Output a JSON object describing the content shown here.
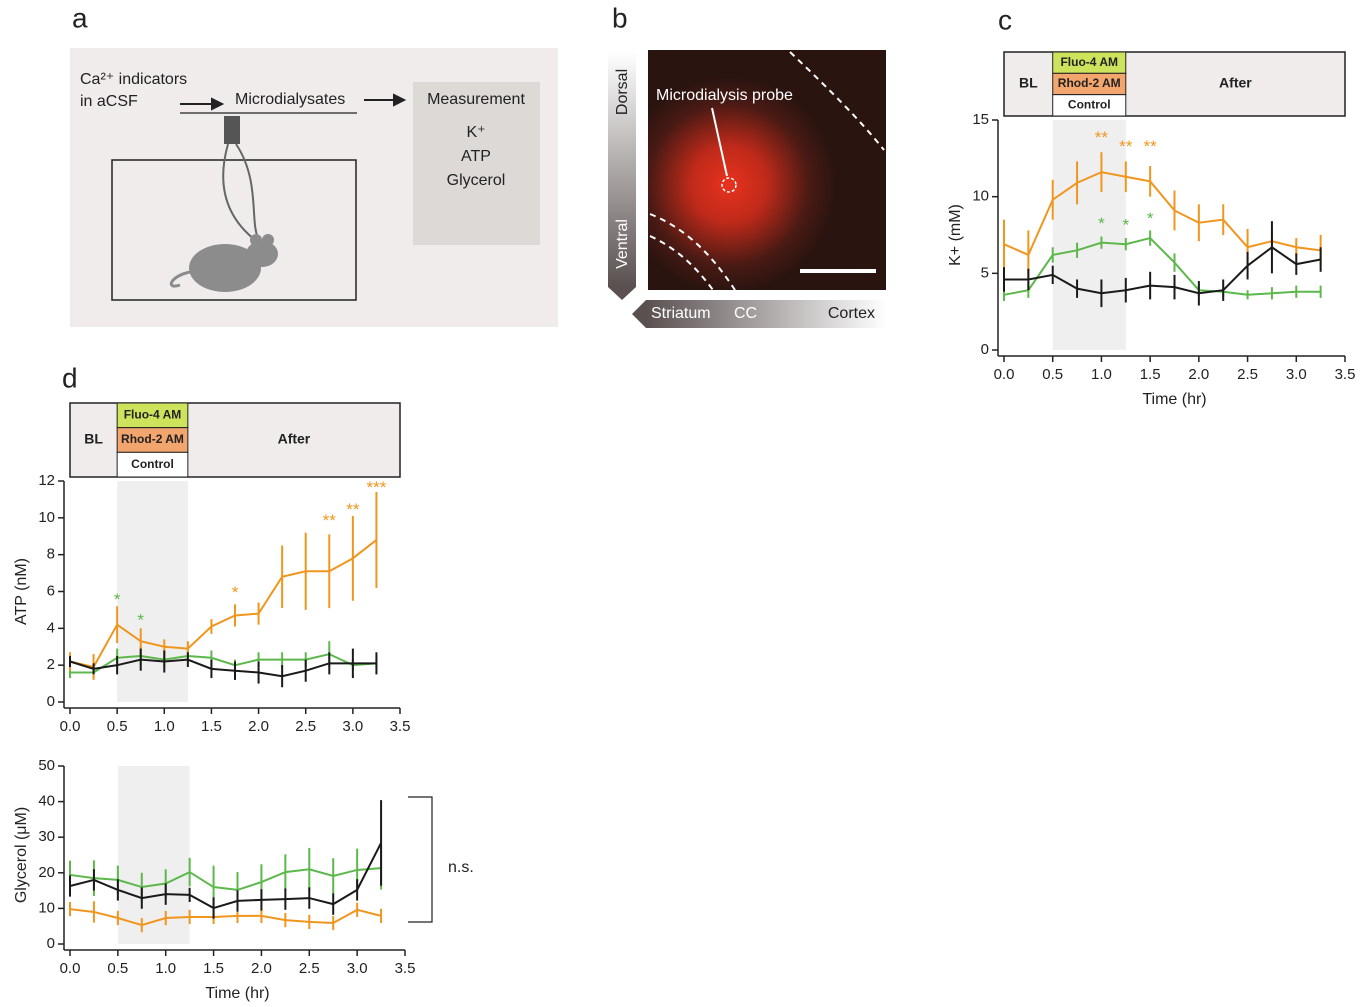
{
  "panel_labels": [
    "a",
    "b",
    "c",
    "d"
  ],
  "schematic": {
    "input_line1": "Ca²⁺ indicators",
    "input_line2": "in aCSF",
    "flow": "Microdialysates",
    "box_title": "Measurement",
    "items": [
      "K⁺",
      "ATP",
      "Glycerol"
    ]
  },
  "image": {
    "vertical_top": "Dorsal",
    "vertical_bottom": "Ventral",
    "probe_label": "Microdialysis probe",
    "horizontal_labels": [
      "Striatum",
      "CC",
      "Cortex"
    ]
  },
  "chart_data": [
    {
      "type": "line",
      "ylabel": "K+ (mM)",
      "xlabel": "Time (hr)",
      "phases": {
        "before": "BL",
        "after": "After"
      },
      "shaded_x": [
        0.5,
        1.25
      ],
      "xlim": [
        0,
        3.5
      ],
      "xticks": [
        {
          "value": 0,
          "label": "0.0"
        },
        {
          "value": 0.5,
          "label": "0.5"
        },
        {
          "value": 1,
          "label": "1.0"
        },
        {
          "value": 1.5,
          "label": "1.5"
        },
        {
          "value": 2,
          "label": "2.0"
        },
        {
          "value": 2.5,
          "label": "2.5"
        },
        {
          "value": 3,
          "label": "3.0"
        },
        {
          "value": 3.5,
          "label": "3.5"
        }
      ],
      "ylim": [
        0,
        15
      ],
      "yticks": [
        0,
        5,
        10,
        15
      ],
      "x": [
        0,
        0.25,
        0.5,
        0.75,
        1,
        1.25,
        1.5,
        1.75,
        2,
        2.25,
        2.5,
        2.75,
        3,
        3.25
      ],
      "series": [
        {
          "name": "Fluo-4 AM",
          "color": "#5cb84a",
          "legend_fill": "#cde35c",
          "values": [
            3.6,
            3.9,
            6.2,
            6.5,
            7.0,
            6.9,
            7.3,
            5.7,
            3.9,
            3.8,
            3.6,
            3.7,
            3.8,
            3.8
          ],
          "errors": [
            0.4,
            0.5,
            0.5,
            0.5,
            0.4,
            0.4,
            0.5,
            0.6,
            0.4,
            0.3,
            0.3,
            0.4,
            0.4,
            0.4
          ]
        },
        {
          "name": "Rhod-2 AM",
          "color": "#f0961e",
          "legend_fill": "#f2a56c",
          "values": [
            6.9,
            6.2,
            9.8,
            10.9,
            11.6,
            11.3,
            11.0,
            9.1,
            8.3,
            8.5,
            6.7,
            7.1,
            6.7,
            6.5
          ],
          "errors": [
            1.6,
            1.6,
            1.3,
            1.4,
            1.3,
            1.0,
            1.0,
            1.3,
            1.2,
            1.0,
            1.2,
            0.4,
            0.6,
            1.0
          ]
        },
        {
          "name": "Control",
          "color": "#1a1a1a",
          "legend_fill": "#ffffff",
          "values": [
            4.6,
            4.6,
            4.9,
            4.0,
            3.7,
            3.9,
            4.2,
            4.1,
            3.7,
            3.9,
            5.5,
            6.7,
            5.6,
            5.9
          ],
          "errors": [
            0.8,
            0.7,
            0.6,
            0.6,
            0.9,
            0.8,
            0.9,
            0.8,
            0.8,
            0.7,
            0.9,
            1.7,
            0.7,
            0.8
          ]
        }
      ],
      "annotations": [
        {
          "text": "**",
          "x": 1,
          "y": 13.8,
          "color": "#f0961e"
        },
        {
          "text": "**",
          "x": 1.25,
          "y": 13.2,
          "color": "#f0961e"
        },
        {
          "text": "**",
          "x": 1.5,
          "y": 13.2,
          "color": "#f0961e"
        },
        {
          "text": "*",
          "x": 1,
          "y": 8.2,
          "color": "#5cb84a"
        },
        {
          "text": "*",
          "x": 1.25,
          "y": 8.1,
          "color": "#5cb84a"
        },
        {
          "text": "*",
          "x": 1.5,
          "y": 8.5,
          "color": "#5cb84a"
        }
      ]
    },
    {
      "type": "line",
      "ylabel": "ATP (nM)",
      "phases": {
        "before": "BL",
        "after": "After"
      },
      "shaded_x": [
        0.5,
        1.25
      ],
      "xlim": [
        0,
        3.5
      ],
      "xticks": [
        {
          "value": 0,
          "label": "0.0"
        },
        {
          "value": 0.5,
          "label": "0.5"
        },
        {
          "value": 1,
          "label": "1.0"
        },
        {
          "value": 1.5,
          "label": "1.5"
        },
        {
          "value": 2,
          "label": "2.0"
        },
        {
          "value": 2.5,
          "label": "2.5"
        },
        {
          "value": 3,
          "label": "3.0"
        },
        {
          "value": 3.5,
          "label": "3.5"
        }
      ],
      "ylim": [
        0,
        12
      ],
      "yticks": [
        0,
        2,
        4,
        6,
        8,
        10,
        12
      ],
      "x": [
        0,
        0.25,
        0.5,
        0.75,
        1,
        1.25,
        1.5,
        1.75,
        2,
        2.25,
        2.5,
        2.75,
        3,
        3.25
      ],
      "series": [
        {
          "name": "Fluo-4 AM",
          "color": "#5cb84a",
          "legend_fill": "#cde35c",
          "values": [
            1.6,
            1.6,
            2.4,
            2.5,
            2.3,
            2.5,
            2.4,
            2.0,
            2.3,
            2.3,
            2.3,
            2.6,
            2.0,
            2.1
          ],
          "errors": [
            0.3,
            0.3,
            0.5,
            0.5,
            0.4,
            0.4,
            0.4,
            0.3,
            0.4,
            0.4,
            0.4,
            0.7,
            0.3,
            0.3
          ]
        },
        {
          "name": "Rhod-2 AM",
          "color": "#f0961e",
          "legend_fill": "#f2a56c",
          "values": [
            2.2,
            1.9,
            4.2,
            3.3,
            3.0,
            2.9,
            4.1,
            4.7,
            4.8,
            6.8,
            7.1,
            7.1,
            7.8,
            8.8
          ],
          "errors": [
            0.5,
            0.7,
            1.0,
            0.7,
            0.4,
            0.4,
            0.4,
            0.6,
            0.6,
            1.7,
            2.1,
            2.0,
            2.3,
            2.6
          ]
        },
        {
          "name": "Control",
          "color": "#1a1a1a",
          "legend_fill": "#ffffff",
          "values": [
            2.2,
            1.8,
            2.0,
            2.3,
            2.2,
            2.3,
            1.8,
            1.7,
            1.6,
            1.4,
            1.7,
            2.1,
            2.1,
            2.1
          ],
          "errors": [
            0.3,
            0.3,
            0.5,
            0.6,
            0.6,
            0.4,
            0.5,
            0.5,
            0.6,
            0.6,
            0.6,
            0.6,
            0.8,
            0.6
          ]
        }
      ],
      "annotations": [
        {
          "text": "*",
          "x": 0.5,
          "y": 5.5,
          "color": "#5cb84a"
        },
        {
          "text": "*",
          "x": 0.75,
          "y": 4.4,
          "color": "#5cb84a"
        },
        {
          "text": "*",
          "x": 1.75,
          "y": 5.9,
          "color": "#f0961e"
        },
        {
          "text": "**",
          "x": 2.75,
          "y": 9.8,
          "color": "#f0961e"
        },
        {
          "text": "**",
          "x": 3,
          "y": 10.4,
          "color": "#f0961e"
        },
        {
          "text": "***",
          "x": 3.25,
          "y": 11.6,
          "color": "#f0961e"
        }
      ]
    },
    {
      "type": "line",
      "ylabel": "Glycerol (μM)",
      "xlabel": "Time (hr)",
      "bracket_label": "n.s.",
      "shaded_x": [
        0.5,
        1.25
      ],
      "xlim": [
        0,
        3.5
      ],
      "xticks": [
        {
          "value": 0,
          "label": "0.0"
        },
        {
          "value": 0.5,
          "label": "0.5"
        },
        {
          "value": 1,
          "label": "1.0"
        },
        {
          "value": 1.5,
          "label": "1.5"
        },
        {
          "value": 2,
          "label": "2.0"
        },
        {
          "value": 2.5,
          "label": "2.5"
        },
        {
          "value": 3,
          "label": "3.0"
        },
        {
          "value": 3.5,
          "label": "3.5"
        }
      ],
      "ylim": [
        0,
        50
      ],
      "yticks": [
        0,
        10,
        20,
        30,
        40,
        50
      ],
      "x": [
        0,
        0.25,
        0.5,
        0.75,
        1,
        1.25,
        1.5,
        1.75,
        2,
        2.25,
        2.5,
        2.75,
        3,
        3.25
      ],
      "series": [
        {
          "color": "#5cb84a",
          "values": [
            19.4,
            18.5,
            18,
            16,
            17,
            20.2,
            16,
            15.2,
            17.4,
            20.2,
            21,
            19.1,
            20.8,
            21.3
          ],
          "errors": [
            4,
            5,
            4,
            4,
            4,
            4,
            6,
            5,
            5,
            5,
            6,
            5,
            6,
            6
          ]
        },
        {
          "color": "#f0961e",
          "values": [
            9.8,
            9,
            7.3,
            5.3,
            7.3,
            7.6,
            7.6,
            7.9,
            7.9,
            6.7,
            6.2,
            5.9,
            9.6,
            7.9
          ],
          "errors": [
            2,
            3,
            2,
            2,
            2,
            2,
            2,
            2,
            2,
            2,
            2,
            2,
            2,
            2
          ]
        },
        {
          "color": "#1a1a1a",
          "values": [
            16.3,
            18,
            15.2,
            12.9,
            14,
            13.8,
            10.1,
            12.1,
            12.4,
            12.6,
            12.9,
            11.2,
            15.2,
            28.4
          ],
          "errors": [
            3,
            3,
            3,
            3,
            3,
            2,
            3,
            3,
            3,
            3,
            3,
            3,
            3,
            12
          ]
        }
      ],
      "annotations": []
    }
  ]
}
